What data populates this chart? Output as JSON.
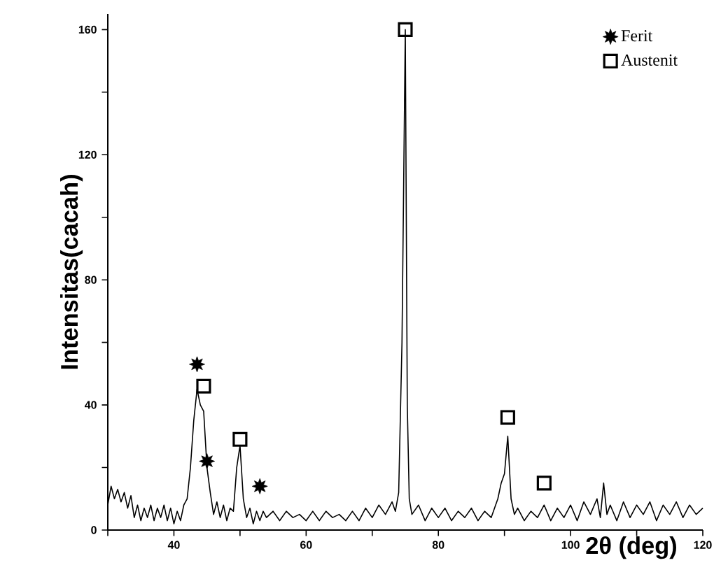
{
  "chart_data": {
    "type": "line",
    "xlabel": "2θ (deg)",
    "ylabel": "Intensitas(cacah)",
    "xlim": [
      30,
      120
    ],
    "ylim": [
      0,
      165
    ],
    "xticks": [
      {
        "value": 30,
        "label": null
      },
      40,
      {
        "value": 50,
        "label": null
      },
      60,
      {
        "value": 70,
        "label": null
      },
      80,
      {
        "value": 90,
        "label": null
      },
      100,
      {
        "value": 110,
        "label": null
      },
      120
    ],
    "yticks": [
      0,
      {
        "value": 20,
        "label": null
      },
      40,
      {
        "value": 60,
        "label": null
      },
      80,
      {
        "value": 100,
        "label": null
      },
      120,
      {
        "value": 140,
        "label": null
      },
      160
    ],
    "grid": false,
    "legend": "top right",
    "series": [
      {
        "color": "#000000",
        "marker": "none",
        "x": [
          30,
          30.5,
          31,
          31.5,
          32,
          32.5,
          33,
          33.5,
          34,
          34.5,
          35,
          35.5,
          36,
          36.5,
          37,
          37.5,
          38,
          38.5,
          39,
          39.5,
          40,
          40.5,
          41,
          41.5,
          42,
          42.5,
          43,
          43.5,
          44,
          44.5,
          45,
          45.5,
          46,
          46.5,
          47,
          47.5,
          48,
          48.5,
          49,
          49.5,
          50,
          50.5,
          51,
          51.5,
          52,
          52.5,
          53,
          53.5,
          54,
          55,
          56,
          57,
          58,
          59,
          60,
          61,
          62,
          63,
          64,
          65,
          66,
          67,
          68,
          69,
          70,
          71,
          72,
          73,
          73.5,
          74,
          74.5,
          75,
          75.3,
          75.6,
          76,
          77,
          78,
          79,
          80,
          81,
          82,
          83,
          84,
          85,
          86,
          87,
          88,
          89,
          89.5,
          90,
          90.5,
          91,
          91.5,
          92,
          93,
          94,
          95,
          96,
          97,
          98,
          99,
          100,
          101,
          102,
          103,
          104,
          104.5,
          105,
          105.5,
          106,
          107,
          108,
          109,
          110,
          111,
          112,
          113,
          114,
          115,
          116,
          117,
          118,
          119,
          120
        ],
        "values": [
          8,
          14,
          10,
          13,
          9,
          12,
          7,
          11,
          4,
          8,
          3,
          7,
          4,
          8,
          3,
          7,
          4,
          8,
          3,
          7,
          2,
          6,
          3,
          8,
          10,
          20,
          35,
          45,
          40,
          38,
          20,
          12,
          5,
          9,
          4,
          8,
          3,
          7,
          6,
          20,
          27,
          10,
          4,
          7,
          2,
          6,
          3,
          6,
          4,
          6,
          3,
          6,
          4,
          5,
          3,
          6,
          3,
          6,
          4,
          5,
          3,
          6,
          3,
          7,
          4,
          8,
          5,
          9,
          6,
          12,
          60,
          160,
          40,
          10,
          5,
          8,
          3,
          7,
          4,
          7,
          3,
          6,
          4,
          7,
          3,
          6,
          4,
          10,
          15,
          18,
          30,
          10,
          5,
          7,
          3,
          6,
          4,
          8,
          3,
          7,
          4,
          8,
          3,
          9,
          5,
          10,
          4,
          15,
          5,
          8,
          3,
          9,
          4,
          8,
          5,
          9,
          3,
          8,
          5,
          9,
          4,
          8,
          5,
          7
        ]
      },
      {
        "name": "Ferit",
        "type": "scatter",
        "marker": "star",
        "color": "#000000",
        "x": [
          43.5,
          45,
          53
        ],
        "values": [
          53,
          22,
          14
        ]
      },
      {
        "name": "Austenit",
        "type": "scatter",
        "marker": "square",
        "color": "#000000",
        "x": [
          44.5,
          50,
          75,
          90.5,
          96
        ],
        "values": [
          46,
          29,
          160,
          36,
          15
        ]
      }
    ]
  }
}
